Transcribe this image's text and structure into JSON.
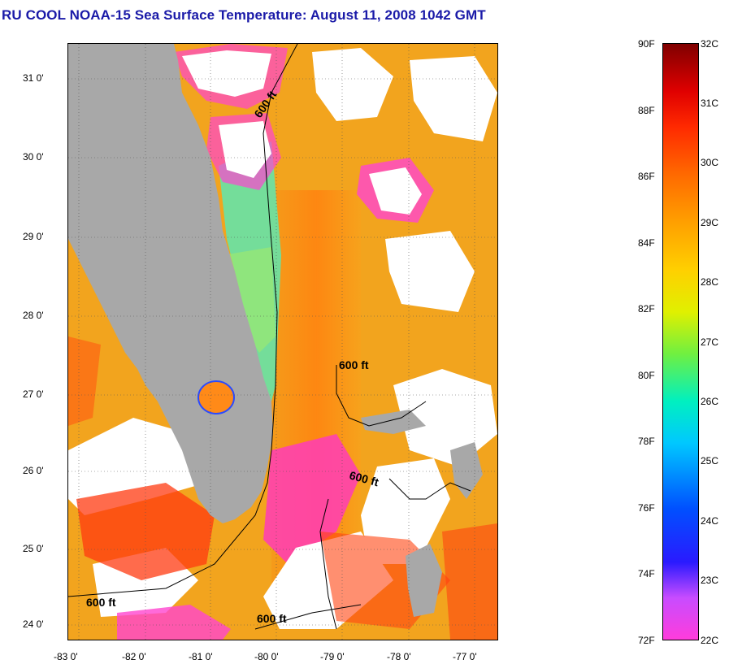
{
  "title": "RU COOL  NOAA-15  Sea Surface Temperature:  August 11, 2008 1042 GMT",
  "axes": {
    "y_ticks": [
      "31 0'",
      "30 0'",
      "29 0'",
      "28 0'",
      "27 0'",
      "26 0'",
      "25 0'",
      "24 0'"
    ],
    "x_ticks": [
      "-83 0'",
      "-82 0'",
      "-81 0'",
      "-80 0'",
      "-79 0'",
      "-78 0'",
      "-77 0'"
    ]
  },
  "map": {
    "lat_range": [
      23.8,
      31.4
    ],
    "lon_range": [
      -83.0,
      -76.9
    ],
    "contour_labels": [
      "600 ft",
      "600 ft",
      "600 ft",
      "600 ft",
      "600 ft"
    ],
    "land_color": "#a8a8a8",
    "cloud_color": "#ffffff"
  },
  "colorbar": {
    "fahrenheit_labels": [
      "90F",
      "88F",
      "86F",
      "84F",
      "82F",
      "80F",
      "78F",
      "76F",
      "74F",
      "72F"
    ],
    "celsius_labels": [
      "32C",
      "31C",
      "30C",
      "29C",
      "28C",
      "27C",
      "26C",
      "25C",
      "24C",
      "23C",
      "22C"
    ],
    "range_c": [
      22,
      32
    ],
    "range_f": [
      72,
      90
    ]
  }
}
